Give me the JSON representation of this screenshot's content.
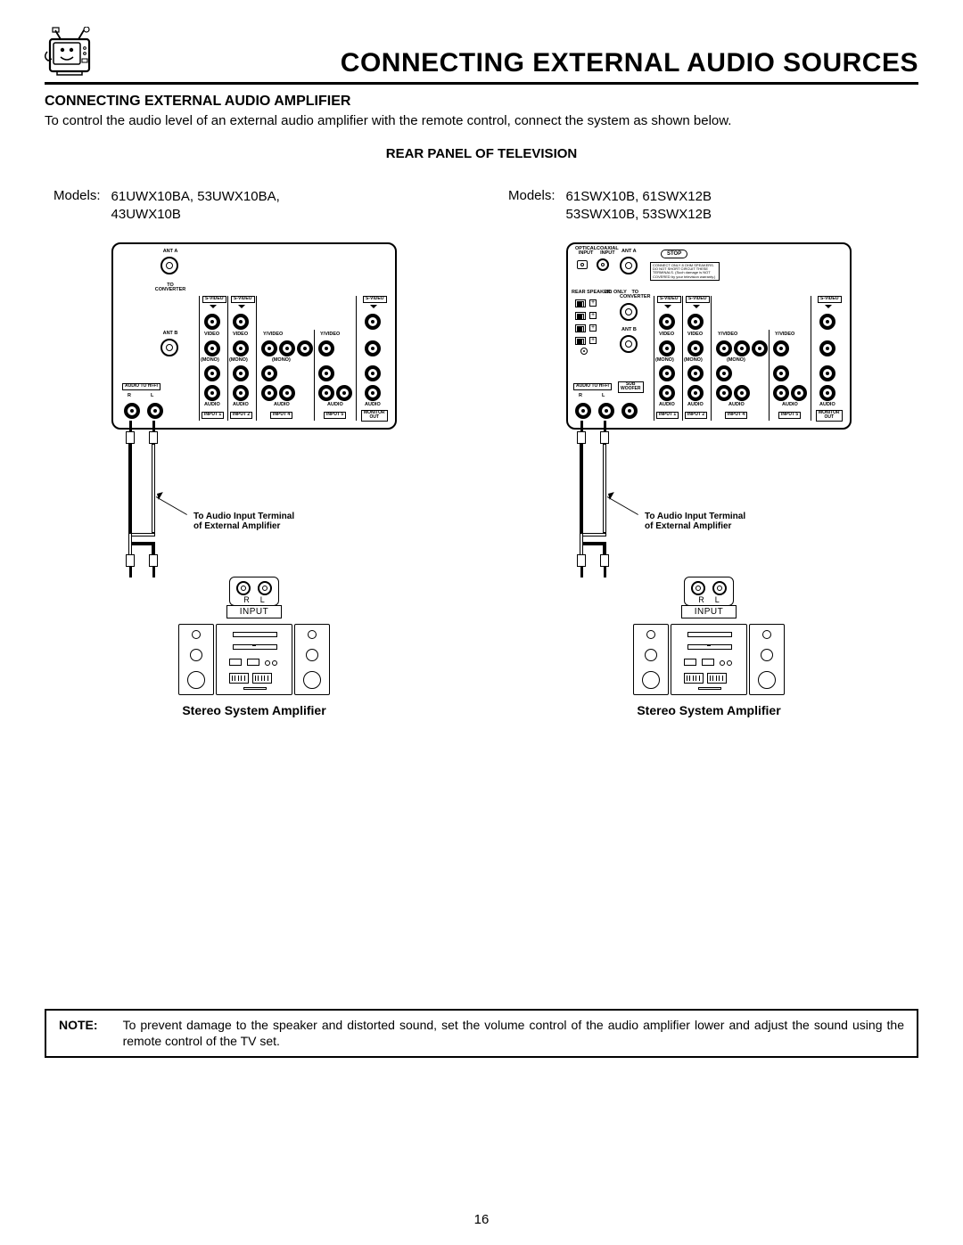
{
  "page": {
    "title": "CONNECTING EXTERNAL AUDIO SOURCES",
    "section_title": "CONNECTING EXTERNAL AUDIO AMPLIFIER",
    "intro": "To control the audio level of an external audio amplifier with the remote control, connect the system as shown below.",
    "subheading": "REAR PANEL OF TELEVISION",
    "page_number": "16"
  },
  "left": {
    "models_label": "Models:",
    "models_list": "61UWX10BA, 53UWX10BA,\n43UWX10B",
    "arrow_label": "To Audio Input Terminal\nof External Amplifier",
    "amp_caption": "Stereo System Amplifier",
    "input_label": "INPUT",
    "r": "R",
    "l": "L"
  },
  "right": {
    "models_label": "Models:",
    "models_list": "61SWX10B, 61SWX12B\n53SWX10B, 53SWX12B",
    "arrow_label": "To Audio Input Terminal\nof External Amplifier",
    "amp_caption": "Stereo System Amplifier",
    "input_label": "INPUT",
    "r": "R",
    "l": "L"
  },
  "panel_labels": {
    "ant_a": "ANT A",
    "ant_b": "ANT B",
    "to_converter": "TO\nCONVERTER",
    "svideo": "S-VIDEO",
    "video": "VIDEO",
    "yvideo": "Y/VIDEO",
    "mono": "(MONO)",
    "audio": "AUDIO",
    "audio_to_hifi": "AUDIO TO HI-FI",
    "r": "R",
    "l": "L",
    "input1": "INPUT 1",
    "input2": "INPUT 2",
    "input4": "INPUT 4",
    "input5": "INPUT 5",
    "monitor_out": "MONITOR\nOUT",
    "optical_input": "OPTICAL\nINPUT",
    "coaxial_input": "COAXIAL\nINPUT",
    "rear_speaker": "REAR SPEAKER",
    "sub_woofer": "SUB\nWOOFER",
    "ohms": "8Ω ONLY",
    "stop": "STOP",
    "warn": "CONNECT ONLY 8 OHM SPEAKERS. DO NOT SHORT CIRCUIT THESE TERMINALS. (Such damage is NOT COVERED by your television warranty.)"
  },
  "note": {
    "label": "NOTE:",
    "text": "To prevent damage to the speaker and distorted sound, set the volume control of the audio amplifier lower and adjust the sound using the remote control of the TV set."
  },
  "colors": {
    "text": "#000000",
    "bg": "#ffffff",
    "line": "#000000"
  }
}
